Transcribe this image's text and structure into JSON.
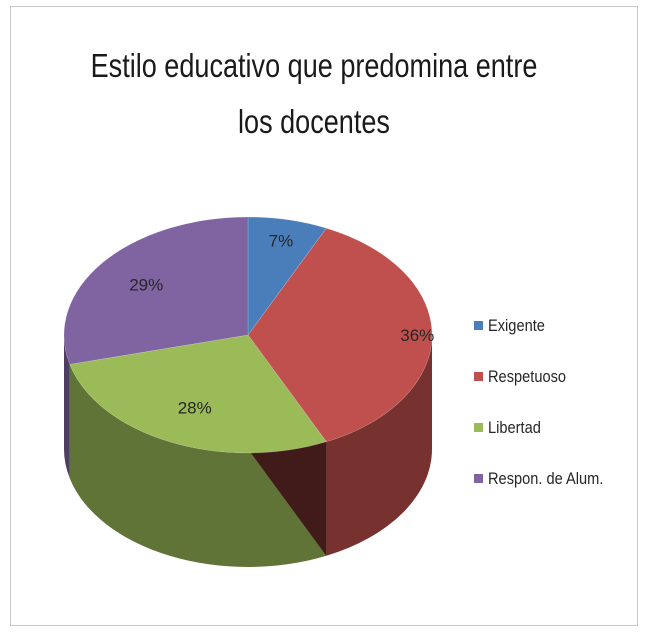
{
  "chart_data": {
    "type": "pie",
    "title": "Estilo educativo que predomina entre los docentes",
    "categories": [
      "Exigente",
      "Respetuoso",
      "Libertad",
      "Respon. de Alum."
    ],
    "values": [
      7,
      36,
      28,
      29
    ],
    "data_labels": [
      "7%",
      "36%",
      "28%",
      "29%"
    ],
    "colors": [
      "#4a7ebb",
      "#c0504d",
      "#9bbb59",
      "#8064a2"
    ],
    "legend_position": "right",
    "style": "3d"
  }
}
